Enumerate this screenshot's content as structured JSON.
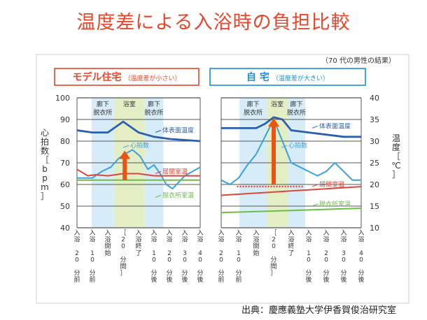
{
  "title": "温度差による入浴時の負担比較",
  "note": "（70 代の男性の結果）",
  "source": "出典：慶應義塾大学伊香賀俊治研究室",
  "y_left_label": "心拍数［bpm］",
  "y_right_label": "温度［℃］",
  "colors": {
    "title": "#e8452b",
    "model": "#e8452b",
    "own": "#1a8fd6",
    "heart": "#3aa0e0",
    "living": "#2a5fb0",
    "bath": "#d8483a",
    "dressing": "#6cbd45",
    "arrow": "#ea5513",
    "zone_blue": "#d6ecf8",
    "zone_green": "#e3eec4"
  },
  "chart_data": [
    {
      "type": "line",
      "panel_title": "モデル住宅",
      "panel_note": "（温度差が小さい）",
      "categories": [
        "入浴 20 分前",
        "入浴 10 分前",
        "入浴開始",
        "［20 分間］",
        "入浴終了",
        "入浴 10 分後",
        "入浴 20 分後",
        "入浴 30 分後",
        "入浴 40 分後"
      ],
      "zones": [
        {
          "label": "廊下 脱衣所",
          "from": 0.95,
          "to": 2.4
        },
        {
          "label": "浴室",
          "from": 2.4,
          "to": 4.4
        },
        {
          "label": "廊下 脱衣所",
          "from": 4.4,
          "to": 5.6
        }
      ],
      "ylim_left": [
        40,
        100
      ],
      "yticks_left": [
        40,
        50,
        60,
        70,
        80,
        90,
        100
      ],
      "ylim_right": [
        10,
        40
      ],
      "series": [
        {
          "name": "体表面温度",
          "axis": "left",
          "x": [
            0,
            1,
            2,
            3,
            4,
            5,
            6,
            7,
            8
          ],
          "values": [
            85,
            84,
            84,
            89,
            84,
            82,
            81,
            80.5,
            80
          ]
        },
        {
          "name": "心拍数",
          "axis": "left",
          "x": [
            0,
            1,
            1.6,
            2.2,
            2.7,
            3.1,
            3.6,
            4.1,
            4.6,
            5,
            5.4,
            5.8,
            6.2,
            7,
            8
          ],
          "values": [
            63,
            63,
            66,
            68,
            72,
            74,
            76,
            73,
            67,
            69,
            65,
            60,
            58,
            64,
            68
          ]
        },
        {
          "name": "居間室温",
          "axis": "left",
          "x": [
            0,
            0.7,
            1.2,
            2,
            3,
            4,
            5,
            6,
            7,
            8
          ],
          "values": [
            67,
            64,
            64.5,
            64,
            65,
            65,
            64,
            64,
            64,
            64
          ]
        },
        {
          "name": "脱衣所室温",
          "axis": "left",
          "x": [
            0,
            2,
            4,
            6,
            8
          ],
          "values": [
            62,
            62,
            62,
            62,
            62
          ]
        }
      ],
      "annotations": [
        "体表面温度",
        "心拍数",
        "居間室温",
        "脱衣所室温"
      ],
      "arrow": {
        "x": 3.1,
        "from": 62,
        "to": 75
      }
    },
    {
      "type": "line",
      "panel_title": "自 宅",
      "panel_note": "（温度差が大きい）",
      "categories": [
        "入浴 20 分前",
        "入浴 10 分前",
        "入浴開始",
        "［20 分間］",
        "入浴終了",
        "入浴 10 分後",
        "入浴 20 分後",
        "入浴 30 分後",
        "入浴 40 分後"
      ],
      "zones": [
        {
          "label": "廊下 脱衣所",
          "from": 1.05,
          "to": 2.6
        },
        {
          "label": "浴室",
          "from": 2.6,
          "to": 3.8
        },
        {
          "label": "廊下 脱衣所",
          "from": 3.8,
          "to": 4.8
        }
      ],
      "ylim_left": [
        40,
        100
      ],
      "ylim_right": [
        10,
        40
      ],
      "yticks_right": [
        10,
        15,
        20,
        25,
        30,
        35,
        40
      ],
      "series": [
        {
          "name": "体表面温度",
          "axis": "left",
          "x": [
            0,
            1,
            2,
            2.5,
            3,
            3.5,
            4,
            5,
            6,
            7,
            8
          ],
          "values": [
            86,
            86,
            86,
            88,
            91,
            90,
            85,
            84,
            83,
            82,
            82
          ]
        },
        {
          "name": "心拍数",
          "axis": "left",
          "x": [
            0,
            0.5,
            1,
            1.5,
            2,
            2.5,
            3,
            3.5,
            4,
            4.5,
            5,
            5.5,
            6,
            6.5,
            7,
            7.5,
            8
          ],
          "values": [
            62,
            60,
            63,
            69,
            74,
            82,
            90,
            80,
            70,
            68,
            66,
            64,
            66,
            70,
            66,
            62,
            62
          ]
        },
        {
          "name": "居間室温",
          "axis": "left",
          "x": [
            0,
            2,
            4,
            6,
            8
          ],
          "values": [
            55,
            56,
            57,
            58,
            59
          ]
        },
        {
          "name": "脱衣所室温",
          "axis": "left",
          "x": [
            0,
            2,
            4,
            6,
            8
          ],
          "values": [
            47,
            47.5,
            48,
            48.5,
            49
          ]
        }
      ],
      "baseline_dotted": 59,
      "annotations": [
        "体表面温度",
        "心拍数",
        "居間室温",
        "脱衣所室温"
      ],
      "arrow": {
        "x": 3.0,
        "from": 60,
        "to": 90
      }
    }
  ]
}
